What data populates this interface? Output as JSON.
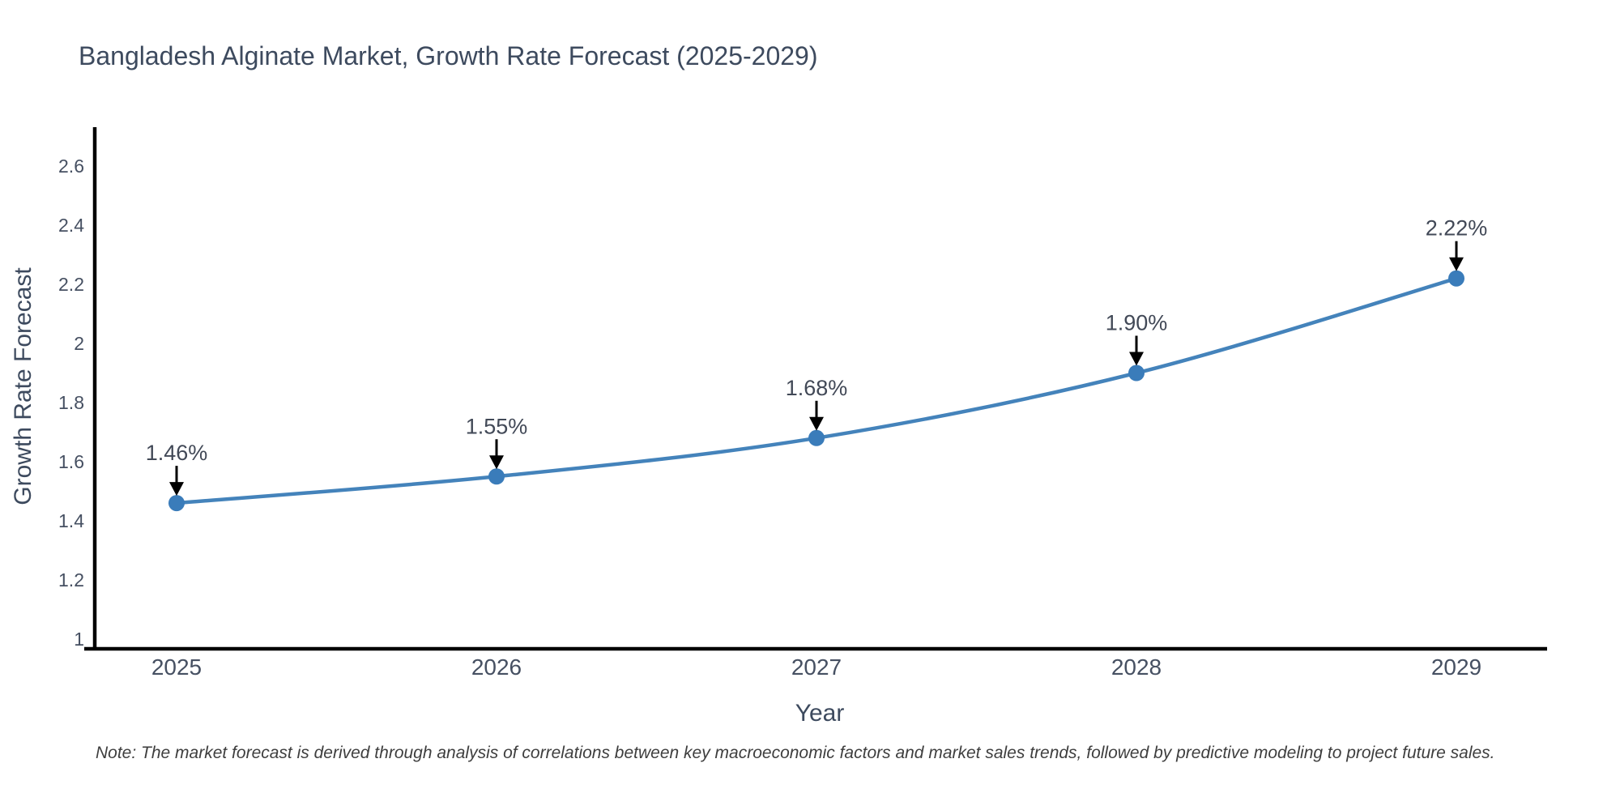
{
  "title": "Bangladesh Alginate Market, Growth Rate Forecast (2025-2029)",
  "note": "Note: The market forecast is derived through analysis of correlations between key macroeconomic factors and market sales trends, followed by predictive modeling to project future sales.",
  "colors": {
    "background": "#ffffff",
    "line": "#4483bb",
    "marker": "#3a7cba",
    "axis": "#000000",
    "arrow": "#000000",
    "title_text": "#3d4a5e",
    "tick_text": "#465062",
    "annotation_text": "#424957",
    "note_text": "#3e3e3e"
  },
  "chart_data": {
    "type": "line",
    "title": "Bangladesh Alginate Market, Growth Rate Forecast (2025-2029)",
    "xlabel": "Year",
    "ylabel": "Growth Rate Forecast",
    "x": [
      2025,
      2026,
      2027,
      2028,
      2029
    ],
    "y": [
      1.46,
      1.55,
      1.68,
      1.9,
      2.22
    ],
    "point_labels": [
      "1.46%",
      "1.55%",
      "1.68%",
      "1.90%",
      "2.22%"
    ],
    "xticks": [
      "2025",
      "2026",
      "2027",
      "2028",
      "2029"
    ],
    "yticks": [
      {
        "v": 1.0,
        "label": "1"
      },
      {
        "v": 1.2,
        "label": "1.2"
      },
      {
        "v": 1.4,
        "label": "1.4"
      },
      {
        "v": 1.6,
        "label": "1.6"
      },
      {
        "v": 1.8,
        "label": "1.8"
      },
      {
        "v": 2.0,
        "label": "2"
      },
      {
        "v": 2.2,
        "label": "2.2"
      },
      {
        "v": 2.4,
        "label": "2.4"
      },
      {
        "v": 2.6,
        "label": "2.6"
      }
    ],
    "ylim": [
      1.0,
      2.75
    ],
    "grid": false,
    "legend": false,
    "line_shape": "spline",
    "annotation_style": "black-down-arrow-to-point"
  }
}
